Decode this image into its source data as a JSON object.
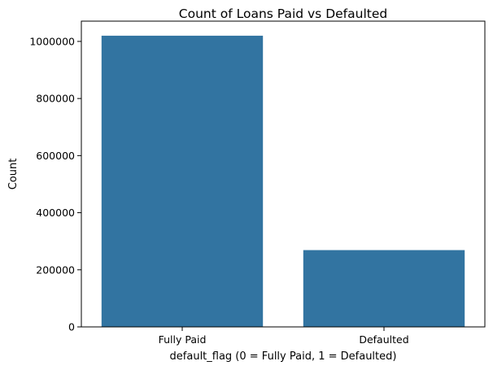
{
  "chart_data": {
    "type": "bar",
    "title": "Count of Loans Paid vs Defaulted",
    "xlabel": "default_flag (0 = Fully Paid, 1 = Defaulted)",
    "ylabel": "Count",
    "categories": [
      "Fully Paid",
      "Defaulted"
    ],
    "values": [
      1020000,
      269000
    ],
    "ylim": [
      0,
      1071000
    ],
    "yticks": [
      0,
      200000,
      400000,
      600000,
      800000,
      1000000
    ],
    "ytick_labels": [
      "0",
      "200000",
      "400000",
      "600000",
      "800000",
      "1000000"
    ],
    "bar_color": "#3274a1",
    "grid": false
  }
}
